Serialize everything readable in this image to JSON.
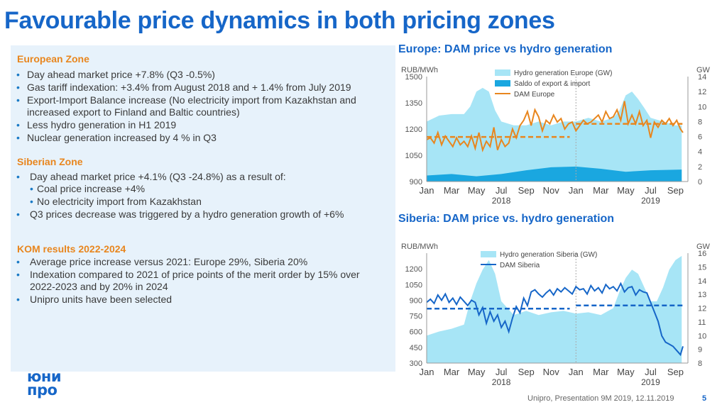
{
  "slide": {
    "title": "Favourable price dynamics in both pricing zones",
    "footer": "Unipro, Presentation 9M 2019, 12.11.2019",
    "page_number": "5",
    "logo_line1": "юни",
    "logo_line2": "про"
  },
  "panel": {
    "european": {
      "heading": "European Zone",
      "bullets": [
        "Day ahead market price +7.8% (Q3 -0.5%)",
        "Gas tariff indexation: +3.4% from August 2018 and + 1.4% from July 2019",
        "Export-Import Balance increase (No electricity import from Kazakhstan and increased export to Finland and Baltic countries)",
        "Less hydro generation in H1 2019",
        "Nuclear generation increased by 4 % in Q3"
      ]
    },
    "siberian": {
      "heading": "Siberian Zone",
      "bullet1": "Day ahead market price +4.1% (Q3 -24.8%) as a result of:",
      "sub_bullets": [
        "Coal price increase +4%",
        "No electricity import from Kazakhstan"
      ],
      "bullet2": "Q3 prices decrease was triggered by a hydro generation growth of +6%"
    },
    "kom": {
      "heading": "KOM results 2022-2024",
      "bullets": [
        "Average price increase versus 2021: Europe 29%, Siberia 20%",
        "Indexation compared to 2021 of price points of the merit order by 15% over 2022-2023 and by 20% in 2024",
        "Unipro units have been selected"
      ]
    }
  },
  "colors": {
    "accent": "#1666c8",
    "orange": "#e8861e",
    "hydro": "#a7e5f6",
    "saldo": "#1aa7e0",
    "siberia_line": "#1666c8",
    "panel_bg": "#e7f2fb"
  },
  "chart_data": [
    {
      "type": "area",
      "title": "Europe: DAM price vs hydro generation",
      "ylabel_left": "RUB/MWh",
      "ylabel_right": "GW",
      "ylim_left": [
        900,
        1500
      ],
      "yticks_left": [
        "900",
        "1050",
        "1200",
        "1350",
        "1500"
      ],
      "ylim_right": [
        0,
        14
      ],
      "yticks_right": [
        "0",
        "2",
        "4",
        "6",
        "8",
        "10",
        "12",
        "14"
      ],
      "x_ticks": [
        "Jan",
        "Mar",
        "May",
        "Jul",
        "Sep",
        "Nov",
        "Jan",
        "Mar",
        "May",
        "Jul",
        "Sep"
      ],
      "x_years": [
        "2018",
        "2019"
      ],
      "legend": "top-right",
      "series": [
        {
          "name": "Hydro generation Europe (GW)",
          "type": "area",
          "axis": "right",
          "x_months": [
            0,
            1,
            2,
            3,
            3.5,
            4,
            4.5,
            5,
            5.5,
            6,
            7,
            8,
            9,
            10,
            11,
            12,
            13,
            14,
            15,
            15.5,
            16,
            16.5,
            17,
            17.5,
            18,
            19,
            20,
            20.5
          ],
          "values": [
            8,
            8.8,
            9,
            9,
            10,
            12,
            12.5,
            12,
            9.5,
            8,
            7.5,
            7.5,
            8,
            7.5,
            8,
            8,
            8.5,
            8,
            8.5,
            9.5,
            11.5,
            12,
            11,
            9.8,
            8.5,
            8,
            7.5,
            7.5
          ]
        },
        {
          "name": "Saldo of export & import",
          "type": "area",
          "axis": "right",
          "x_months": [
            0,
            2,
            4,
            6,
            8,
            10,
            12,
            14,
            16,
            18,
            20.5
          ],
          "values": [
            0.8,
            1.0,
            0.7,
            1.0,
            1.5,
            1.9,
            2.0,
            1.7,
            1.3,
            1.5,
            1.6
          ]
        },
        {
          "name": "DAM Europe",
          "type": "line",
          "axis": "left",
          "x_months": [
            0,
            0.3,
            0.6,
            0.9,
            1.2,
            1.5,
            1.8,
            2.1,
            2.4,
            2.7,
            3,
            3.3,
            3.6,
            3.9,
            4.2,
            4.5,
            4.8,
            5.1,
            5.4,
            5.7,
            6,
            6.3,
            6.6,
            6.9,
            7.2,
            7.5,
            7.8,
            8.1,
            8.4,
            8.7,
            9,
            9.3,
            9.6,
            9.9,
            10.2,
            10.5,
            10.8,
            11.1,
            11.4,
            11.7,
            12,
            12.3,
            12.6,
            12.9,
            13.2,
            13.5,
            13.8,
            14.1,
            14.4,
            14.7,
            15,
            15.3,
            15.6,
            15.9,
            16.2,
            16.5,
            16.8,
            17.1,
            17.4,
            17.7,
            18,
            18.3,
            18.6,
            18.9,
            19.2,
            19.5,
            19.8,
            20.1,
            20.4,
            20.6
          ],
          "values": [
            1140,
            1150,
            1120,
            1180,
            1110,
            1160,
            1130,
            1100,
            1150,
            1110,
            1130,
            1100,
            1160,
            1090,
            1180,
            1080,
            1130,
            1100,
            1210,
            1080,
            1140,
            1100,
            1120,
            1200,
            1150,
            1220,
            1250,
            1300,
            1220,
            1310,
            1270,
            1190,
            1250,
            1230,
            1280,
            1240,
            1260,
            1200,
            1230,
            1240,
            1190,
            1220,
            1250,
            1230,
            1240,
            1260,
            1280,
            1240,
            1300,
            1260,
            1270,
            1310,
            1250,
            1360,
            1230,
            1280,
            1230,
            1300,
            1220,
            1250,
            1150,
            1240,
            1210,
            1250,
            1230,
            1260,
            1220,
            1250,
            1200,
            1180
          ]
        },
        {
          "name": "DAM Europe annual average",
          "type": "dashed",
          "axis": "left",
          "segments": [
            [
              0,
              11.5,
              1155
            ],
            [
              12,
              23,
              1230
            ]
          ]
        }
      ]
    },
    {
      "type": "area",
      "title": "Siberia: DAM price vs. hydro generation",
      "ylabel_left": "RUB/MWh",
      "ylabel_right": "GW",
      "ylim_left": [
        300,
        1350
      ],
      "yticks_left": [
        "300",
        "450",
        "600",
        "750",
        "900",
        "1050",
        "1200"
      ],
      "ylim_right": [
        8,
        16
      ],
      "yticks_right": [
        "8",
        "9",
        "10",
        "11",
        "12",
        "13",
        "14",
        "15",
        "16"
      ],
      "x_ticks": [
        "Jan",
        "Mar",
        "May",
        "Jul",
        "Sep",
        "Nov",
        "Jan",
        "Mar",
        "May",
        "Jul",
        "Sep"
      ],
      "x_years": [
        "2018",
        "2019"
      ],
      "legend": "top-right",
      "series": [
        {
          "name": "Hydro generation Siberia (GW)",
          "type": "area",
          "axis": "right",
          "x_months": [
            0,
            1,
            2,
            3,
            3.5,
            4,
            4.5,
            5,
            5.5,
            6,
            7,
            8,
            9,
            10,
            11,
            12,
            13,
            14,
            15,
            15.5,
            16,
            16.5,
            17,
            17.5,
            18,
            18.5,
            19,
            19.5,
            20,
            20.5
          ],
          "values": [
            10,
            10.3,
            10.5,
            10.8,
            12.5,
            13.8,
            14.8,
            15.5,
            14.5,
            12.5,
            11.5,
            11.8,
            11.5,
            11.7,
            11.8,
            11.6,
            11.7,
            11.5,
            12,
            13.2,
            14.2,
            14.8,
            14.5,
            13.5,
            12.5,
            12.5,
            13.5,
            14.8,
            15.5,
            15.8
          ]
        },
        {
          "name": "DAM Siberia",
          "type": "line",
          "axis": "left",
          "x_months": [
            0,
            0.3,
            0.6,
            0.9,
            1.2,
            1.5,
            1.8,
            2.1,
            2.4,
            2.7,
            3,
            3.3,
            3.6,
            3.9,
            4.2,
            4.5,
            4.8,
            5.1,
            5.4,
            5.7,
            6,
            6.3,
            6.6,
            6.9,
            7.2,
            7.5,
            7.8,
            8.1,
            8.4,
            8.7,
            9,
            9.3,
            9.6,
            9.9,
            10.2,
            10.5,
            10.8,
            11.1,
            11.4,
            11.7,
            12,
            12.3,
            12.6,
            12.9,
            13.2,
            13.5,
            13.8,
            14.1,
            14.4,
            14.7,
            15,
            15.3,
            15.6,
            15.9,
            16.2,
            16.5,
            16.8,
            17.1,
            17.4,
            17.7,
            18,
            18.3,
            18.6,
            18.9,
            19.2,
            19.5,
            19.8,
            20.1,
            20.4,
            20.6
          ],
          "values": [
            880,
            910,
            870,
            950,
            900,
            960,
            880,
            920,
            860,
            930,
            890,
            850,
            900,
            880,
            760,
            830,
            680,
            790,
            700,
            760,
            640,
            700,
            600,
            730,
            840,
            780,
            920,
            850,
            980,
            1000,
            960,
            930,
            970,
            1000,
            950,
            1010,
            980,
            1020,
            990,
            960,
            1030,
            1000,
            1010,
            960,
            1040,
            990,
            1020,
            970,
            1050,
            1010,
            1030,
            990,
            1060,
            980,
            1020,
            1030,
            950,
            1000,
            980,
            970,
            880,
            790,
            700,
            560,
            500,
            480,
            460,
            420,
            380,
            460
          ]
        },
        {
          "name": "DAM Siberia annual average",
          "type": "dashed",
          "axis": "left",
          "segments": [
            [
              0,
              11.5,
              820
            ],
            [
              12,
              23,
              850
            ]
          ]
        }
      ]
    }
  ]
}
